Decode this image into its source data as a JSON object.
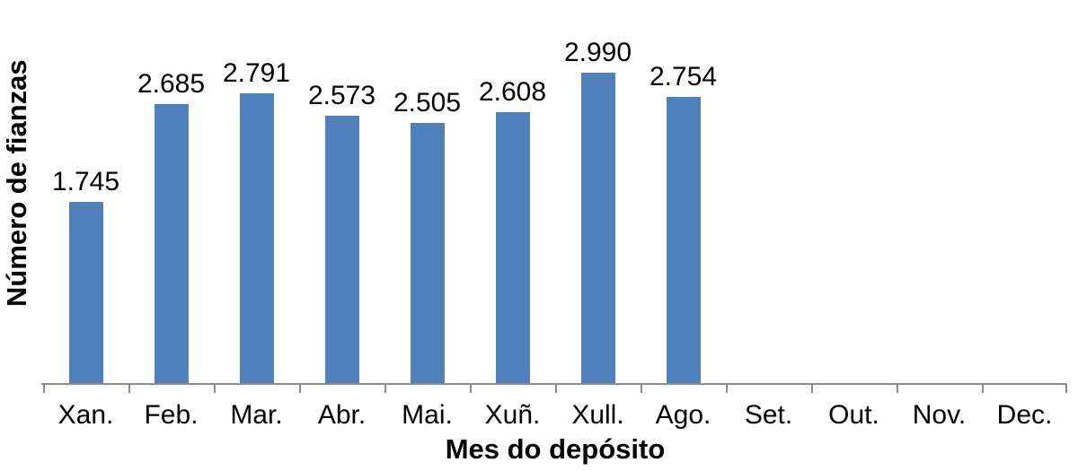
{
  "chart_data": {
    "type": "bar",
    "title": "",
    "xlabel": "Mes do depósito",
    "ylabel": "Número de fianzas",
    "categories": [
      "Xan.",
      "Feb.",
      "Mar.",
      "Abr.",
      "Mai.",
      "Xuñ.",
      "Xull.",
      "Ago.",
      "Set.",
      "Out.",
      "Nov.",
      "Dec."
    ],
    "values": [
      1745,
      2685,
      2791,
      2573,
      2505,
      2608,
      2990,
      2754,
      null,
      null,
      null,
      null
    ],
    "data_labels": [
      "1.745",
      "2.685",
      "2.791",
      "2.573",
      "2.505",
      "2.608",
      "2.990",
      "2.754",
      "",
      "",
      "",
      ""
    ],
    "ylim": [
      0,
      3630
    ],
    "grid": false,
    "legend": false,
    "bar_color": "#4F81BD",
    "axis_line_color": "#8C8C8C",
    "label_color": "#000000"
  }
}
